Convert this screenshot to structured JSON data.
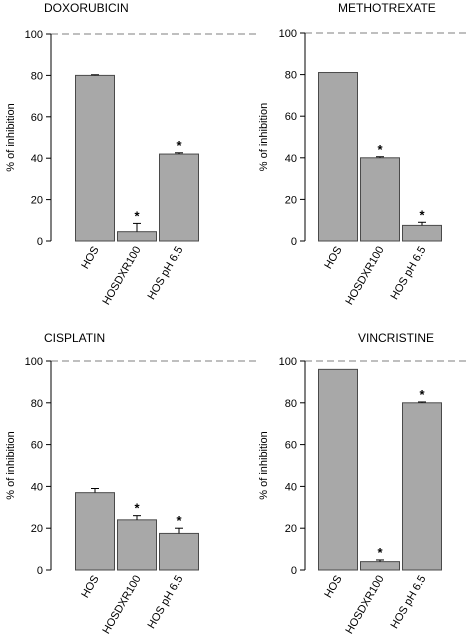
{
  "colors": {
    "bar_fill": "#a8a8a8",
    "bar_stroke": "#4a4a4a",
    "axis": "#000000",
    "reference_line": "#7f7f7f"
  },
  "significance_marker": "*",
  "chart_data": [
    {
      "type": "bar",
      "title": "DOXORUBICIN",
      "ylabel": "% of inhibition",
      "ylim": [
        0,
        100
      ],
      "yticks": [
        0,
        20,
        40,
        60,
        80,
        100
      ],
      "reference_line": {
        "y": 100,
        "style": "dashed"
      },
      "categories": [
        "HOS",
        "HOSDXR100",
        "HOS pH 6.5"
      ],
      "values": [
        80,
        4.5,
        42
      ],
      "errors": [
        0.3,
        4,
        0.6
      ],
      "significant": [
        false,
        true,
        true
      ]
    },
    {
      "type": "bar",
      "title": "METHOTREXATE",
      "ylabel": "% of inhibition",
      "ylim": [
        0,
        100
      ],
      "yticks": [
        0,
        20,
        40,
        60,
        80,
        100
      ],
      "reference_line": {
        "y": 100,
        "style": "dashed"
      },
      "categories": [
        "HOS",
        "HOSDXR100",
        "HOS pH 6.5"
      ],
      "values": [
        81,
        40,
        7.5
      ],
      "errors": [
        0,
        0.5,
        1.5
      ],
      "significant": [
        false,
        true,
        true
      ]
    },
    {
      "type": "bar",
      "title": "CISPLATIN",
      "ylabel": "% of inhibition",
      "ylim": [
        0,
        100
      ],
      "yticks": [
        0,
        20,
        40,
        60,
        80,
        100
      ],
      "reference_line": {
        "y": 100,
        "style": "dashed"
      },
      "categories": [
        "HOS",
        "HOSDXR100",
        "HOS pH 6.5"
      ],
      "values": [
        37,
        24,
        17.5
      ],
      "errors": [
        2,
        2,
        2.5
      ],
      "significant": [
        false,
        true,
        true
      ]
    },
    {
      "type": "bar",
      "title": "VINCRISTINE",
      "ylabel": "% of inhibition",
      "ylim": [
        0,
        100
      ],
      "yticks": [
        0,
        20,
        40,
        60,
        80,
        100
      ],
      "reference_line": {
        "y": 100,
        "style": "dashed"
      },
      "categories": [
        "HOS",
        "HOSDXR100",
        "HOS pH 6.5"
      ],
      "values": [
        96,
        4,
        80
      ],
      "errors": [
        0,
        0.8,
        0.4
      ],
      "significant": [
        false,
        true,
        true
      ]
    }
  ]
}
